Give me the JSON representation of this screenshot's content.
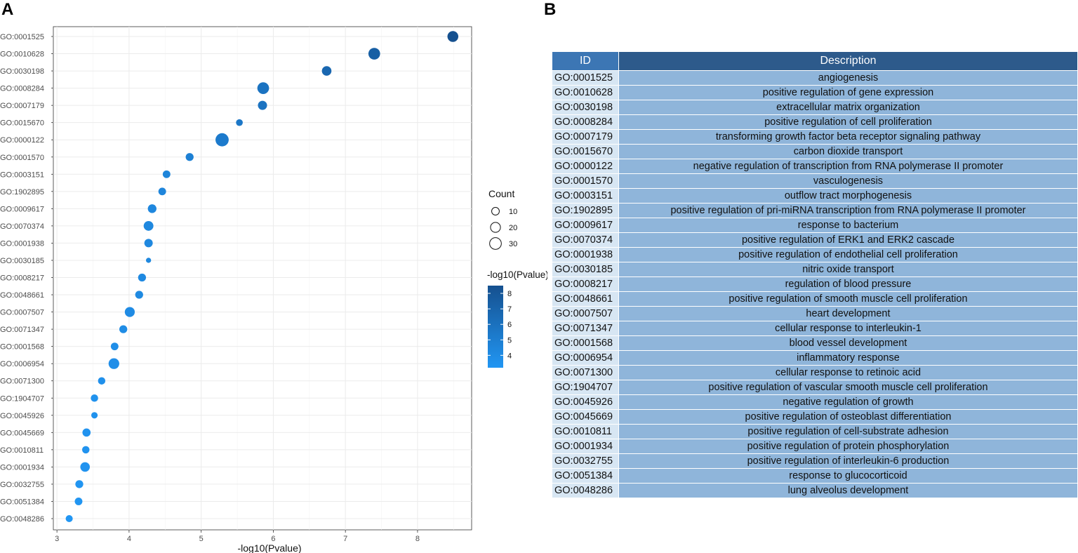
{
  "panels": {
    "a_label": "A",
    "b_label": "B"
  },
  "colors": {
    "low": "#2196f3",
    "high": "#15508f",
    "grid": "#ebebeb",
    "table_header_desc": "#2d5a8b",
    "table_header_id": "#3c76b4",
    "table_id_cell": "#d7e6f3",
    "table_desc_cell": "#8fb5da"
  },
  "chart_data": {
    "type": "scatter",
    "title": "",
    "xlabel": "-log10(Pvalue)",
    "ylabel": "",
    "xlim": [
      2.95,
      8.75
    ],
    "xticks": [
      3,
      4,
      5,
      6,
      7,
      8
    ],
    "size_legend": {
      "title": "Count",
      "values": [
        10,
        20,
        30
      ]
    },
    "color_legend": {
      "title": "-log10(Pvalue)",
      "ticks": [
        8,
        7,
        6,
        5,
        4
      ],
      "range": [
        3.2,
        8.5
      ]
    },
    "points": [
      {
        "go": "GO:0001525",
        "x": 8.49,
        "count": 25
      },
      {
        "go": "GO:0010628",
        "x": 7.4,
        "count": 30
      },
      {
        "go": "GO:0030198",
        "x": 6.74,
        "count": 18
      },
      {
        "go": "GO:0008284",
        "x": 5.86,
        "count": 30
      },
      {
        "go": "GO:0007179",
        "x": 5.85,
        "count": 16
      },
      {
        "go": "GO:0015670",
        "x": 5.53,
        "count": 7
      },
      {
        "go": "GO:0000122",
        "x": 5.29,
        "count": 40
      },
      {
        "go": "GO:0001570",
        "x": 4.84,
        "count": 11
      },
      {
        "go": "GO:0003151",
        "x": 4.52,
        "count": 10
      },
      {
        "go": "GO:1902895",
        "x": 4.46,
        "count": 10
      },
      {
        "go": "GO:0009617",
        "x": 4.32,
        "count": 14
      },
      {
        "go": "GO:0070374",
        "x": 4.27,
        "count": 19
      },
      {
        "go": "GO:0001938",
        "x": 4.27,
        "count": 13
      },
      {
        "go": "GO:0030185",
        "x": 4.27,
        "count": 3
      },
      {
        "go": "GO:0008217",
        "x": 4.18,
        "count": 11
      },
      {
        "go": "GO:0048661",
        "x": 4.14,
        "count": 11
      },
      {
        "go": "GO:0007507",
        "x": 4.01,
        "count": 20
      },
      {
        "go": "GO:0071347",
        "x": 3.92,
        "count": 11
      },
      {
        "go": "GO:0001568",
        "x": 3.8,
        "count": 10
      },
      {
        "go": "GO:0006954",
        "x": 3.79,
        "count": 24
      },
      {
        "go": "GO:0071300",
        "x": 3.62,
        "count": 9
      },
      {
        "go": "GO:1904707",
        "x": 3.52,
        "count": 9
      },
      {
        "go": "GO:0045926",
        "x": 3.52,
        "count": 6
      },
      {
        "go": "GO:0045669",
        "x": 3.41,
        "count": 12
      },
      {
        "go": "GO:0010811",
        "x": 3.4,
        "count": 9
      },
      {
        "go": "GO:0001934",
        "x": 3.39,
        "count": 18
      },
      {
        "go": "GO:0032755",
        "x": 3.31,
        "count": 11
      },
      {
        "go": "GO:0051384",
        "x": 3.3,
        "count": 10
      },
      {
        "go": "GO:0048286",
        "x": 3.17,
        "count": 8
      }
    ]
  },
  "table": {
    "headers": [
      "ID",
      "Description"
    ],
    "rows": [
      [
        "GO:0001525",
        "angiogenesis"
      ],
      [
        "GO:0010628",
        "positive regulation of gene expression"
      ],
      [
        "GO:0030198",
        "extracellular matrix organization"
      ],
      [
        "GO:0008284",
        "positive regulation of cell proliferation"
      ],
      [
        "GO:0007179",
        "transforming growth factor beta receptor signaling pathway"
      ],
      [
        "GO:0015670",
        "carbon dioxide transport"
      ],
      [
        "GO:0000122",
        "negative regulation of transcription from RNA polymerase II promoter"
      ],
      [
        "GO:0001570",
        "vasculogenesis"
      ],
      [
        "GO:0003151",
        "outflow tract morphogenesis"
      ],
      [
        "GO:1902895",
        "positive regulation of pri-miRNA transcription from RNA polymerase II promoter"
      ],
      [
        "GO:0009617",
        "response to bacterium"
      ],
      [
        "GO:0070374",
        "positive regulation of ERK1 and ERK2 cascade"
      ],
      [
        "GO:0001938",
        "positive regulation of endothelial cell proliferation"
      ],
      [
        "GO:0030185",
        "nitric oxide transport"
      ],
      [
        "GO:0008217",
        "regulation of blood pressure"
      ],
      [
        "GO:0048661",
        "positive regulation of smooth muscle cell proliferation"
      ],
      [
        "GO:0007507",
        "heart development"
      ],
      [
        "GO:0071347",
        "cellular response to interleukin-1"
      ],
      [
        "GO:0001568",
        "blood vessel development"
      ],
      [
        "GO:0006954",
        "inflammatory response"
      ],
      [
        "GO:0071300",
        "cellular response to retinoic acid"
      ],
      [
        "GO:1904707",
        "positive regulation of vascular smooth muscle cell proliferation"
      ],
      [
        "GO:0045926",
        "negative regulation of growth"
      ],
      [
        "GO:0045669",
        "positive regulation of osteoblast differentiation"
      ],
      [
        "GO:0010811",
        "positive regulation of cell-substrate adhesion"
      ],
      [
        "GO:0001934",
        "positive regulation of protein phosphorylation"
      ],
      [
        "GO:0032755",
        "positive regulation of interleukin-6 production"
      ],
      [
        "GO:0051384",
        "response to glucocorticoid"
      ],
      [
        "GO:0048286",
        "lung alveolus development"
      ]
    ]
  }
}
